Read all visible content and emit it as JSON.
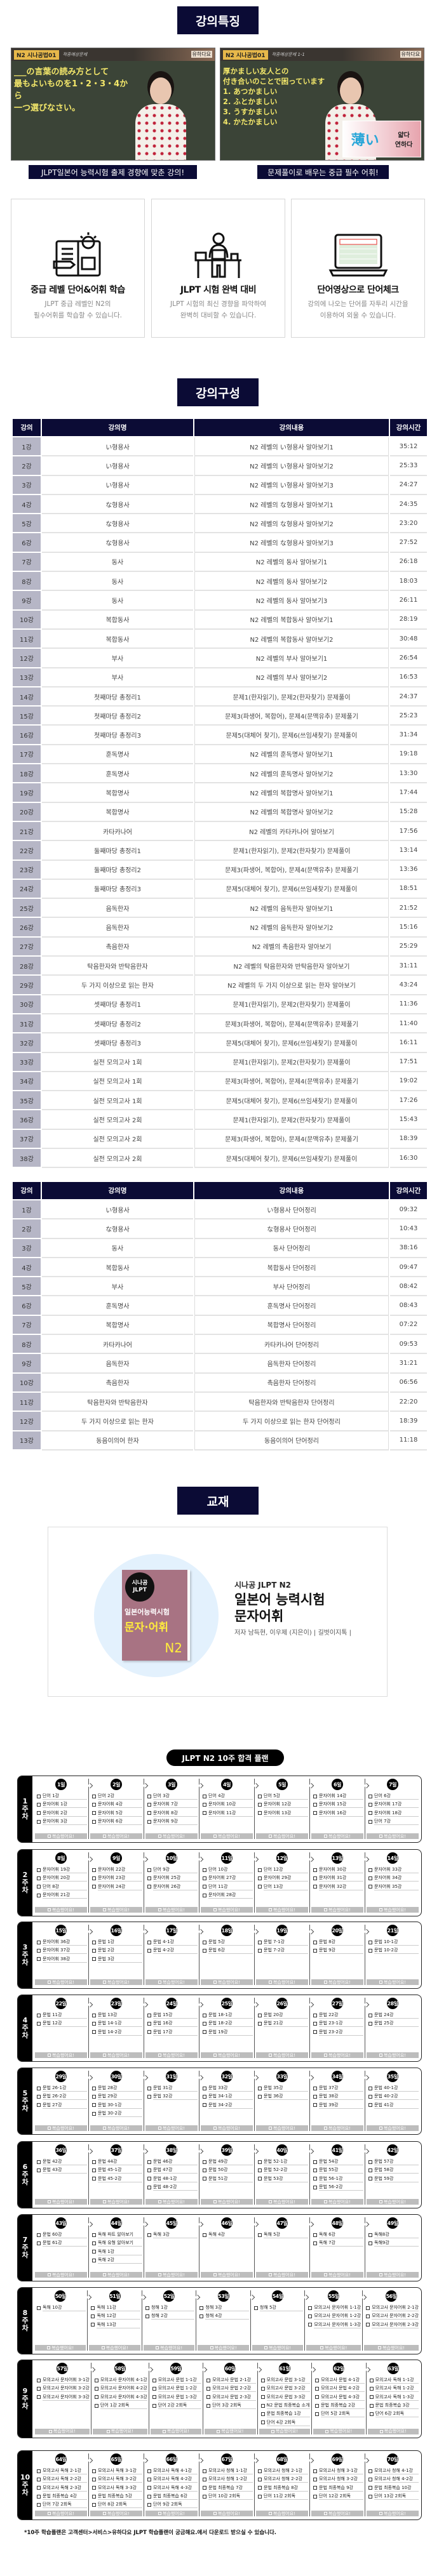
{
  "features_section": {
    "title": "강의특징",
    "videos": [
      {
        "badge": "N2 시나공법01",
        "subtitle": "적중예상문제",
        "brand": "유하다요",
        "lines": "___の言葉の読み方として\n最もよいものを1・2・3・4から\n一つ選びなさい。",
        "caption": "JLPT일본어 능력시험 출제 경향에 맞춘 강의!"
      },
      {
        "badge": "N2 시나공법01",
        "subtitle": "적중예상문제 1-1",
        "brand": "유하다요",
        "lines": "厚かましい友人との\n付き合いのことで困っています\n1. あつかましい\n2. ふとかましい\n3. うすかましい\n4. かたかましい",
        "card_kanji": "薄い",
        "card_ko": "얇다\n연하다",
        "caption": "문제풀이로 배우는 중급 필수 어휘!"
      }
    ],
    "cards": [
      {
        "icon": "book-lightbulb-icon",
        "title": "중급 레벨 단어&어휘 학습",
        "desc": "JLPT 중급 레벨인 N2의\n필수어휘를 학습할 수 있습니다."
      },
      {
        "icon": "desk-study-icon",
        "title": "JLPT 시험 완벽 대비",
        "desc": "JLPT 시험의 최신 경향을 파악하여\n완벽히 대비할 수 있습니다."
      },
      {
        "icon": "laptop-wordlist-icon",
        "title": "단어영상으로 단어체크",
        "desc": "강의에 나오는 단어를 자투리 시간을\n이용하여 외울 수 있습니다."
      }
    ]
  },
  "curriculum": {
    "title": "강의구성",
    "headers": [
      "강의",
      "강의명",
      "강의내용",
      "강의시간"
    ],
    "main_rows": [
      [
        "1강",
        "い형용사",
        "N2 레벨의 い형용사 알아보기1",
        "35:12"
      ],
      [
        "2강",
        "い형용사",
        "N2 레벨의 い형용사 알아보기2",
        "25:33"
      ],
      [
        "3강",
        "い형용사",
        "N2 레벨의 い형용사 알아보기3",
        "24:27"
      ],
      [
        "4강",
        "な형용사",
        "N2 레벨의 な형용사 알아보기1",
        "24:35"
      ],
      [
        "5강",
        "な형용사",
        "N2 레벨의 な형용사 알아보기2",
        "23:20"
      ],
      [
        "6강",
        "な형용사",
        "N2 레벨의 な형용사 알아보기3",
        "27:52"
      ],
      [
        "7강",
        "동사",
        "N2 레벨의 동사 알아보기1",
        "26:18"
      ],
      [
        "8강",
        "동사",
        "N2 레벨의 동사 알아보기2",
        "18:03"
      ],
      [
        "9강",
        "동사",
        "N2 레벨의 동사 알아보기3",
        "26:11"
      ],
      [
        "10강",
        "복합동사",
        "N2 레벨의 복합동사 알아보기1",
        "28:19"
      ],
      [
        "11강",
        "복합동사",
        "N2 레벨의 복합동사 알아보기2",
        "30:48"
      ],
      [
        "12강",
        "부사",
        "N2 레벨의 부사 알아보기1",
        "26:54"
      ],
      [
        "13강",
        "부사",
        "N2 레벨의 부사 알아보기2",
        "16:53"
      ],
      [
        "14강",
        "첫째마당 총정리1",
        "문제1(한자읽기), 문제2(한자찾기) 문제풀이",
        "24:37"
      ],
      [
        "15강",
        "첫째마당 총정리2",
        "문제3(파생어, 복합어), 문제4(문맥유추) 문제풀기",
        "25:23"
      ],
      [
        "16강",
        "첫째마당 총정리3",
        "문제5(대체어 찾기), 문제6(쓰임새찾기) 문제풀이",
        "31:34"
      ],
      [
        "17강",
        "훈독명사",
        "N2 레벨의 훈독명사 알아보기1",
        "19:18"
      ],
      [
        "18강",
        "훈독명사",
        "N2 레벨의 훈독명사 알아보기2",
        "13:30"
      ],
      [
        "19강",
        "복합명사",
        "N2 레벨의 복합명사 알아보기1",
        "17:44"
      ],
      [
        "20강",
        "복합명사",
        "N2 레벨의 복합명사 알아보기2",
        "15:28"
      ],
      [
        "21강",
        "카타카나어",
        "N2 레벨의 카타카나어 알아보기",
        "17:56"
      ],
      [
        "22강",
        "둘째마당 총정리1",
        "문제1(한자읽기), 문제2(한자찾기) 문제풀이",
        "13:14"
      ],
      [
        "23강",
        "둘째마당 총정리2",
        "문제3(파생어, 복합어), 문제4(문맥유추) 문제풀기",
        "13:36"
      ],
      [
        "24강",
        "둘째마당 총정리3",
        "문제5(대체어 찾기), 문제6(쓰임새찾기) 문제풀이",
        "18:51"
      ],
      [
        "25강",
        "음독한자",
        "N2 레벨의 음독한자 알아보기1",
        "21:52"
      ],
      [
        "26강",
        "음독한자",
        "N2 레벨의 음독한자 알아보기2",
        "15:16"
      ],
      [
        "27강",
        "촉음한자",
        "N2 레벨의 촉음한자 알아보기",
        "25:29"
      ],
      [
        "28강",
        "탁음한자와 반탁음한자",
        "N2 레벨의 탁음한자와 반탁음한자 알아보기",
        "31:11"
      ],
      [
        "29강",
        "두 가지 이상으로 읽는 한자",
        "N2 레벨의 두 가지 이상으로 읽는 한자 알아보기",
        "43:24"
      ],
      [
        "30강",
        "셋째마당 총정리1",
        "문제1(한자읽기), 문제2(한자찾기) 문제풀이",
        "11:36"
      ],
      [
        "31강",
        "셋째마당 총정리2",
        "문제3(파생어, 복합어), 문제4(문맥유추) 문제풀기",
        "11:40"
      ],
      [
        "32강",
        "셋째마당 총정리3",
        "문제5(대체어 찾기), 문제6(쓰임새찾기) 문제풀이",
        "16:11"
      ],
      [
        "33강",
        "실전 모의고사 1회",
        "문제1(한자읽기), 문제2(한자찾기) 문제풀이",
        "17:51"
      ],
      [
        "34강",
        "실전 모의고사 1회",
        "문제3(파생어, 복합어), 문제4(문맥유추) 문제풀기",
        "19:02"
      ],
      [
        "35강",
        "실전 모의고사 1회",
        "문제5(대체어 찾기), 문제6(쓰임새찾기) 문제풀이",
        "17:26"
      ],
      [
        "36강",
        "실전 모의고사 2회",
        "문제1(한자읽기), 문제2(한자찾기) 문제풀이",
        "15:43"
      ],
      [
        "37강",
        "실전 모의고사 2회",
        "문제3(파생어, 복합어), 문제4(문맥유추) 문제풀기",
        "18:39"
      ],
      [
        "38강",
        "실전 모의고사 2회",
        "문제5(대체어 찾기), 문제6(쓰임새찾기) 문제풀이",
        "16:30"
      ]
    ],
    "word_rows": [
      [
        "1강",
        "い형용사",
        "い형용사 단어정리",
        "09:32"
      ],
      [
        "2강",
        "な형용사",
        "な형용사 단어정리",
        "10:43"
      ],
      [
        "3강",
        "동사",
        "동사 단어정리",
        "38:16"
      ],
      [
        "4강",
        "복합동사",
        "복합동사 단어정리",
        "09:47"
      ],
      [
        "5강",
        "부사",
        "부사 단어정리",
        "08:42"
      ],
      [
        "6강",
        "훈독명사",
        "훈독명사 단어정리",
        "08:43"
      ],
      [
        "7강",
        "복합명사",
        "복합명사 단어정리",
        "07:22"
      ],
      [
        "8강",
        "카타카나어",
        "카타카나어 단어정리",
        "09:53"
      ],
      [
        "9강",
        "음독한자",
        "음독한자 단어정리",
        "31:21"
      ],
      [
        "10강",
        "촉음한자",
        "촉음한자 단어정리",
        "06:56"
      ],
      [
        "11강",
        "탁음한자와 반탁음한자",
        "탁음한자와 반탁음한자 단어정리",
        "22:20"
      ],
      [
        "12강",
        "두 가지 이상으로 읽는 한자",
        "두 가지 이상으로 읽는 한자 단어정리",
        "18:39"
      ],
      [
        "13강",
        "동음이의어 한자",
        "동음이의어 단어정리",
        "11:18"
      ]
    ]
  },
  "textbook": {
    "title": "교재",
    "cover": {
      "logo": "시나공\nJLPT",
      "title": "일본어능력시험",
      "subject": "문자·어휘",
      "level": "N2"
    },
    "series": "시나공 JLPT N2",
    "name": "일본어 능력시험\n문자어휘",
    "author": "저자  남득현, 이우제 (지은이) | 길벗이지톡 |"
  },
  "plan": {
    "title": "JLPT N2 10주 합격 플랜",
    "review_label": "복습했어요!",
    "footnote": "*10주 학습플랜은 고객센터>서비스>유하다요 JLPT 학습플랜이 궁금해요.에서 다운로드 받으실 수 있습니다.",
    "weeks": [
      {
        "label": "1\n주\n차",
        "days": [
          {
            "day": "1일",
            "items": [
              "단어 1강",
              "문자어휘 1강",
              "문자어휘 2강",
              "문자어휘 3강"
            ]
          },
          {
            "day": "2일",
            "items": [
              "단어 2강",
              "문자어휘 4강",
              "문자어휘 5강",
              "문자어휘 6강"
            ]
          },
          {
            "day": "3일",
            "items": [
              "단어 3강",
              "문자어휘 7강",
              "문자어휘 8강",
              "문자어휘 9강"
            ]
          },
          {
            "day": "4일",
            "items": [
              "단어 4강",
              "문자어휘 10강",
              "문자어휘 11강"
            ]
          },
          {
            "day": "5일",
            "items": [
              "단어 5강",
              "문자어휘 12강",
              "문자어휘 13강"
            ]
          },
          {
            "day": "6일",
            "items": [
              "문자어휘 14강",
              "문자어휘 15강",
              "문자어휘 16강"
            ]
          },
          {
            "day": "7일",
            "items": [
              "단어 6강",
              "문자어휘 17강",
              "문자어휘 18강",
              "단어 7강"
            ]
          }
        ]
      },
      {
        "label": "2\n주\n차",
        "days": [
          {
            "day": "8일",
            "items": [
              "문자어휘 19강",
              "문자어휘 20강",
              "단어 8강",
              "문자어휘 21강"
            ]
          },
          {
            "day": "9일",
            "items": [
              "문자어휘 22강",
              "문자어휘 23강",
              "문자어휘 24강"
            ]
          },
          {
            "day": "10일",
            "items": [
              "단어 9강",
              "문자어휘 25강",
              "문자어휘 26강"
            ]
          },
          {
            "day": "11일",
            "items": [
              "단어 10강",
              "문자어휘 27강",
              "단어 11강",
              "문자어휘 28강"
            ]
          },
          {
            "day": "12일",
            "items": [
              "단어 12강",
              "문자어휘 29강",
              "단어 13강"
            ]
          },
          {
            "day": "13일",
            "items": [
              "문자어휘 30강",
              "문자어휘 31강",
              "문자어휘 32강"
            ]
          },
          {
            "day": "14일",
            "items": [
              "문자어휘 33강",
              "문자어휘 34강",
              "문자어휘 35강"
            ]
          }
        ]
      },
      {
        "label": "3\n주\n차",
        "days": [
          {
            "day": "15일",
            "items": [
              "문자어휘 36강",
              "문자어휘 37강",
              "문자어휘 38강"
            ]
          },
          {
            "day": "16일",
            "items": [
              "문법 1강",
              "문법 2강",
              "문법 3강"
            ]
          },
          {
            "day": "17일",
            "items": [
              "문법 4-1강",
              "문법 4-2강"
            ]
          },
          {
            "day": "18일",
            "items": [
              "문법 5강",
              "문법 6강"
            ]
          },
          {
            "day": "19일",
            "items": [
              "문법 7-1강",
              "문법 7-2강"
            ]
          },
          {
            "day": "20일",
            "items": [
              "문법 8강",
              "문법 9강"
            ]
          },
          {
            "day": "21일",
            "items": [
              "문법 10-1강",
              "문법 10-2강"
            ]
          }
        ]
      },
      {
        "label": "4\n주\n차",
        "days": [
          {
            "day": "22일",
            "items": [
              "문법 11강",
              "문법 12강"
            ]
          },
          {
            "day": "23일",
            "items": [
              "문법 13강",
              "문법 14-1강",
              "문법 14-2강"
            ]
          },
          {
            "day": "24일",
            "items": [
              "문법 15강",
              "문법 16강",
              "문법 17강"
            ]
          },
          {
            "day": "25일",
            "items": [
              "문법 18-1강",
              "문법 18-2강",
              "문법 19강"
            ]
          },
          {
            "day": "26일",
            "items": [
              "문법 20강",
              "문법 21강"
            ]
          },
          {
            "day": "27일",
            "items": [
              "문법 22강",
              "문법 23-1강",
              "문법 23-2강"
            ]
          },
          {
            "day": "28일",
            "items": [
              "문법 24강",
              "문법 25강"
            ]
          }
        ]
      },
      {
        "label": "5\n주\n차",
        "days": [
          {
            "day": "29일",
            "items": [
              "문법 26-1강",
              "문법 26-2강",
              "문법 27강"
            ]
          },
          {
            "day": "30일",
            "items": [
              "문법 28강",
              "문법 29강",
              "문법 30-1강",
              "문법 30-2강"
            ]
          },
          {
            "day": "31일",
            "items": [
              "문법 31강",
              "문법 32강"
            ]
          },
          {
            "day": "32일",
            "items": [
              "문법 33강",
              "문법 34-1강",
              "문법 34-2강"
            ]
          },
          {
            "day": "33일",
            "items": [
              "문법 35강",
              "문법 36강"
            ]
          },
          {
            "day": "34일",
            "items": [
              "문법 37강",
              "문법 38강",
              "문법 39강"
            ]
          },
          {
            "day": "35일",
            "items": [
              "문법 40-1강",
              "문법 40-2강",
              "문법 41강"
            ]
          }
        ]
      },
      {
        "label": "6\n주\n차",
        "days": [
          {
            "day": "36일",
            "items": [
              "문법 42강",
              "문법 43강"
            ]
          },
          {
            "day": "37일",
            "items": [
              "문법 44강",
              "문법 45-1강",
              "문법 45-2강"
            ]
          },
          {
            "day": "38일",
            "items": [
              "문법 46강",
              "문법 47강",
              "문법 48-1강",
              "문법 48-2강"
            ]
          },
          {
            "day": "39일",
            "items": [
              "문법 49강",
              "문법 50강",
              "문법 51강"
            ]
          },
          {
            "day": "40일",
            "items": [
              "문법 52-1강",
              "문법 52-2강",
              "문법 53강"
            ]
          },
          {
            "day": "41일",
            "items": [
              "문법 54강",
              "문법 55강",
              "문법 56-1강",
              "문법 56-2강"
            ]
          },
          {
            "day": "42일",
            "items": [
              "문법 57강",
              "문법 58강",
              "문법 59강"
            ]
          }
        ]
      },
      {
        "label": "7\n주\n차",
        "days": [
          {
            "day": "43일",
            "items": [
              "문법 60강",
              "문법 61강"
            ]
          },
          {
            "day": "44일",
            "items": [
              "독해 파트 알아보기",
              "독해 유형 알아보기",
              "독해 1강",
              "독해 2강"
            ]
          },
          {
            "day": "45일",
            "items": [
              "독해 3강"
            ]
          },
          {
            "day": "46일",
            "items": [
              "독해 4강"
            ]
          },
          {
            "day": "47일",
            "items": [
              "독해 5강"
            ]
          },
          {
            "day": "48일",
            "items": [
              "독해 6강",
              "독해 7강"
            ]
          },
          {
            "day": "49일",
            "items": [
              "독해8강",
              "독해9강"
            ]
          }
        ]
      },
      {
        "label": "8\n주\n차",
        "days": [
          {
            "day": "50일",
            "items": [
              "독해 10강"
            ]
          },
          {
            "day": "51일",
            "items": [
              "독해 11강",
              "독해 12강",
              "독해 13강"
            ]
          },
          {
            "day": "52일",
            "items": [
              "청해 1강",
              "청해 2강"
            ]
          },
          {
            "day": "53일",
            "items": [
              "청해 3강",
              "청해 4강"
            ]
          },
          {
            "day": "54일",
            "items": [
              "청해 5강"
            ]
          },
          {
            "day": "55일",
            "items": [
              "모의고사 문자어휘 1-1강",
              "모의고사 문자어휘 1-2강",
              "모의고사 문자어휘 1-3강"
            ]
          },
          {
            "day": "56일",
            "items": [
              "모의고사 문자어휘 2-1강",
              "모의고사 문자어휘 2-2강",
              "모의고사 문자어휘 2-3강"
            ]
          }
        ]
      },
      {
        "label": "9\n주\n차",
        "days": [
          {
            "day": "57일",
            "items": [
              "모의고사 문자어휘 3-1강",
              "모의고사 문자어휘 3-2강",
              "모의고사 문자어휘 3-3강"
            ]
          },
          {
            "day": "58일",
            "items": [
              "모의고사 문자어휘 4-1강",
              "모의고사 문자어휘 4-2강",
              "모의고사 문자어휘 4-3강",
              "단어 1강 2회독"
            ]
          },
          {
            "day": "59일",
            "items": [
              "모의고사 문법 1-1강",
              "모의고사 문법 1-2강",
              "모의고사 문법 1-3강",
              "단어 2강 2회독"
            ]
          },
          {
            "day": "60일",
            "items": [
              "모의고사 문법 2-1강",
              "모의고사 문법 2-2강",
              "모의고사 문법 2-3강",
              "단어 3강 2회독"
            ]
          },
          {
            "day": "61일",
            "items": [
              "모의고사 문법 3-1강",
              "모의고사 문법 3-2강",
              "모의고사 문법 3-3강",
              "N2 문법 최종복습 소개",
              "문법 최종복습 1강",
              "단어 4강 2회독"
            ]
          },
          {
            "day": "62일",
            "items": [
              "모의고사 문법 4-1강",
              "모의고사 문법 4-2강",
              "모의고사 문법 4-3강",
              "문법 최종복습 2강",
              "단어 5강 2회독"
            ]
          },
          {
            "day": "63일",
            "items": [
              "모의고사 독해 1-1강",
              "모의고사 독해 1-2강",
              "모의고사 독해 1-3강",
              "문법 최종복습 3강",
              "단어 6강 2회독"
            ]
          }
        ]
      },
      {
        "label": "10\n주\n차",
        "days": [
          {
            "day": "64일",
            "items": [
              "모의고사 독해 2-1강",
              "모의고사 독해 2-2강",
              "모의고사 독해 2-3강",
              "문법 최종복습 4강",
              "단어 7강 2회독"
            ]
          },
          {
            "day": "65일",
            "items": [
              "모의고사 독해 3-1강",
              "모의고사 독해 3-2강",
              "모의고사 독해 3-3강",
              "문법 최종복습 5강",
              "단어 8강 2회독"
            ]
          },
          {
            "day": "66일",
            "items": [
              "모의고사 독해 4-1강",
              "모의고사 독해 4-2강",
              "모의고사 독해 4-3강",
              "문법 최종복습 6강",
              "단어 9강 2회독"
            ]
          },
          {
            "day": "67일",
            "items": [
              "모의고사 청해 1-1강",
              "모의고사 청해 1-2강",
              "문법 최종복습 7강",
              "단어 10강 2회독"
            ]
          },
          {
            "day": "68일",
            "items": [
              "모의고사 청해 2-1강",
              "모의고사 청해 2-2강",
              "문법 최종복습 8강",
              "단어 11강 2회독"
            ]
          },
          {
            "day": "69일",
            "items": [
              "모의고사 청해 3-1강",
              "모의고사 청해 3-2강",
              "문법 최종복습 9강",
              "단어 12강 2회독"
            ]
          },
          {
            "day": "70일",
            "items": [
              "모의고사 청해 4-1강",
              "모의고사 청해 4-2강",
              "문법 최종복습 10강",
              "단어 13강 2회독"
            ]
          }
        ]
      }
    ]
  },
  "colors": {
    "navy": "#0b0b35",
    "lesson_cell": "#b6b6c6",
    "review_bar": "#bdbdbd"
  }
}
